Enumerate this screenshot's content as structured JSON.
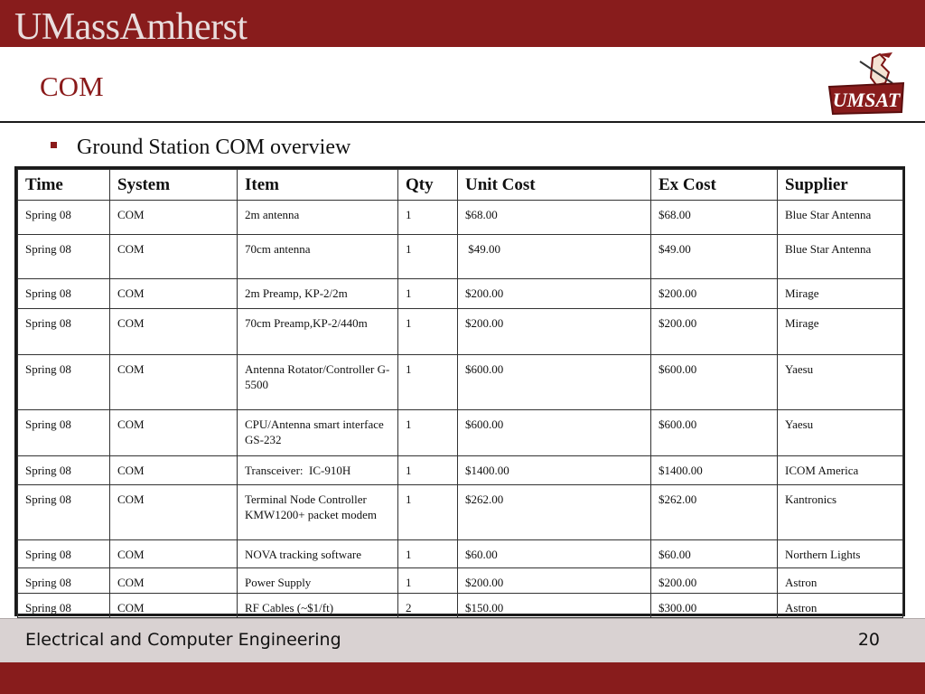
{
  "header": {
    "brand": "UMassAmherst",
    "logo_text": "UMSAT"
  },
  "slide": {
    "title": "COM",
    "bullet": "Ground Station COM overview"
  },
  "table": {
    "headers": [
      "Time",
      "System",
      "Item",
      "Qty",
      "Unit Cost",
      "Ex Cost",
      "Supplier"
    ],
    "rows": [
      [
        "Spring 08",
        "COM",
        "2m antenna",
        "1",
        "$68.00",
        "$68.00",
        "Blue Star Antenna"
      ],
      [
        "Spring 08",
        "COM",
        "70cm antenna",
        "1",
        " $49.00",
        "$49.00",
        "Blue Star Antenna"
      ],
      [
        "Spring 08",
        "COM",
        "2m Preamp, KP-2/2m",
        "1",
        "$200.00",
        "$200.00",
        "Mirage"
      ],
      [
        "Spring 08",
        "COM",
        "70cm Preamp,KP-2/440m",
        "1",
        "$200.00",
        "$200.00",
        "Mirage"
      ],
      [
        "Spring 08",
        "COM",
        "Antenna Rotator/Controller G-5500",
        "1",
        "$600.00",
        "$600.00",
        "Yaesu"
      ],
      [
        "Spring 08",
        "COM",
        "CPU/Antenna smart interface GS-232",
        "1",
        "$600.00",
        "$600.00",
        "Yaesu"
      ],
      [
        "Spring 08",
        "COM",
        "Transceiver:  IC-910H",
        "1",
        "$1400.00",
        "$1400.00",
        "ICOM America"
      ],
      [
        "Spring 08",
        "COM",
        "Terminal Node Controller KMW1200+ packet modem",
        "1",
        "$262.00",
        "$262.00",
        "Kantronics"
      ],
      [
        "Spring 08",
        "COM",
        "NOVA tracking software",
        "1",
        "$60.00",
        "$60.00",
        "Northern Lights"
      ],
      [
        "Spring 08",
        "COM",
        "Power Supply",
        "1",
        "$200.00",
        "$200.00",
        "Astron"
      ],
      [
        "Spring 08",
        "COM",
        "RF Cables (~$1/ft)",
        "2",
        "$150.00",
        "$300.00",
        "Astron"
      ]
    ]
  },
  "footer": {
    "department": "Electrical and Computer Engineering",
    "page_number": "20"
  },
  "colors": {
    "maroon": "#881c1c",
    "footer_gray": "#d9d2d2"
  }
}
